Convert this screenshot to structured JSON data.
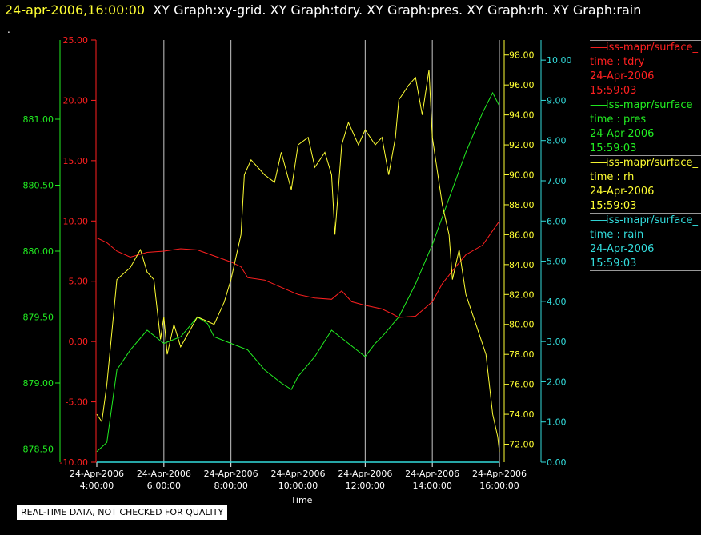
{
  "header": {
    "timestamp": "24-apr-2006,16:00:00",
    "graphs": "XY Graph:xy-grid.  XY Graph:tdry.  XY Graph:pres.  XY Graph:rh.  XY Graph:rain"
  },
  "dot": ".",
  "footer_note": "REAL-TIME DATA, NOT CHECKED FOR QUALITY",
  "colors": {
    "tdry": "#ff2020",
    "pres": "#22ee22",
    "rh": "#ffff33",
    "rain": "#33dddd",
    "grid": "#c8c8c8",
    "x_axis": "#ffffff"
  },
  "legend": [
    {
      "line": "iss-mapr/surface_",
      "var": "time : tdry",
      "date": "24-Apr-2006",
      "time": "15:59:03",
      "color": "#ff2020"
    },
    {
      "line": "iss-mapr/surface_",
      "var": "time : pres",
      "date": "24-Apr-2006",
      "time": "15:59:03",
      "color": "#22ee22"
    },
    {
      "line": "iss-mapr/surface_",
      "var": "time : rh",
      "date": "24-Apr-2006",
      "time": "15:59:03",
      "color": "#ffff33"
    },
    {
      "line": "iss-mapr/surface_",
      "var": "time : rain",
      "date": "24-Apr-2006",
      "time": "15:59:03",
      "color": "#33dddd"
    }
  ],
  "chart_data": {
    "type": "line",
    "xlabel": "Time",
    "x_ticks": [
      {
        "date": "24-Apr-2006",
        "time": "4:00:00",
        "hour": 4
      },
      {
        "date": "24-Apr-2006",
        "time": "6:00:00",
        "hour": 6
      },
      {
        "date": "24-Apr-2006",
        "time": "8:00:00",
        "hour": 8
      },
      {
        "date": "24-Apr-2006",
        "time": "10:00:00",
        "hour": 10
      },
      {
        "date": "24-Apr-2006",
        "time": "12:00:00",
        "hour": 12
      },
      {
        "date": "24-Apr-2006",
        "time": "14:00:00",
        "hour": 14
      },
      {
        "date": "24-Apr-2006",
        "time": "16:00:00",
        "hour": 16
      }
    ],
    "x_range_hours": [
      4,
      16
    ],
    "grid": "vertical",
    "axes": {
      "pres": {
        "range": [
          878.4,
          881.6
        ],
        "ticks": [
          "878.50",
          "879.00",
          "879.50",
          "880.00",
          "880.50",
          "881.00"
        ]
      },
      "tdry": {
        "range": [
          -10,
          25
        ],
        "ticks": [
          "-10.00",
          "-5.00",
          "0.00",
          "5.00",
          "10.00",
          "15.00",
          "20.00",
          "25.00"
        ]
      },
      "rh": {
        "range": [
          70.8,
          99.0
        ],
        "ticks": [
          "72.00",
          "74.00",
          "76.00",
          "78.00",
          "80.00",
          "82.00",
          "84.00",
          "86.00",
          "88.00",
          "90.00",
          "92.00",
          "94.00",
          "96.00",
          "98.00"
        ]
      },
      "rain": {
        "range": [
          0,
          10.5
        ],
        "ticks": [
          "0.00",
          "1.00",
          "2.00",
          "3.00",
          "4.00",
          "5.00",
          "6.00",
          "7.00",
          "8.00",
          "9.00",
          "10.00"
        ]
      }
    },
    "series": [
      {
        "key": "tdry",
        "axis": "tdry",
        "points": [
          [
            4.0,
            8.6
          ],
          [
            4.3,
            8.2
          ],
          [
            4.6,
            7.5
          ],
          [
            5.0,
            7.0
          ],
          [
            5.5,
            7.4
          ],
          [
            6.0,
            7.5
          ],
          [
            6.5,
            7.7
          ],
          [
            7.0,
            7.6
          ],
          [
            7.5,
            7.1
          ],
          [
            8.0,
            6.6
          ],
          [
            8.3,
            6.2
          ],
          [
            8.5,
            5.3
          ],
          [
            9.0,
            5.1
          ],
          [
            9.5,
            4.5
          ],
          [
            10.0,
            3.9
          ],
          [
            10.5,
            3.6
          ],
          [
            11.0,
            3.5
          ],
          [
            11.3,
            4.2
          ],
          [
            11.6,
            3.3
          ],
          [
            12.0,
            3.0
          ],
          [
            12.5,
            2.7
          ],
          [
            12.8,
            2.3
          ],
          [
            13.0,
            2.0
          ],
          [
            13.5,
            2.1
          ],
          [
            14.0,
            3.3
          ],
          [
            14.3,
            4.8
          ],
          [
            14.7,
            6.2
          ],
          [
            15.0,
            7.2
          ],
          [
            15.5,
            8.0
          ],
          [
            16.0,
            10.0
          ]
        ]
      },
      {
        "key": "pres",
        "axis": "pres",
        "points": [
          [
            4.0,
            878.48
          ],
          [
            4.3,
            878.55
          ],
          [
            4.6,
            879.1
          ],
          [
            5.0,
            879.25
          ],
          [
            5.5,
            879.4
          ],
          [
            6.0,
            879.3
          ],
          [
            6.5,
            879.35
          ],
          [
            7.0,
            879.5
          ],
          [
            7.3,
            879.45
          ],
          [
            7.5,
            879.35
          ],
          [
            8.0,
            879.3
          ],
          [
            8.5,
            879.25
          ],
          [
            9.0,
            879.1
          ],
          [
            9.5,
            879.0
          ],
          [
            9.8,
            878.95
          ],
          [
            10.0,
            879.05
          ],
          [
            10.5,
            879.2
          ],
          [
            11.0,
            879.4
          ],
          [
            11.5,
            879.3
          ],
          [
            12.0,
            879.2
          ],
          [
            12.3,
            879.3
          ],
          [
            12.5,
            879.35
          ],
          [
            13.0,
            879.5
          ],
          [
            13.5,
            879.75
          ],
          [
            14.0,
            880.05
          ],
          [
            14.5,
            880.4
          ],
          [
            15.0,
            880.75
          ],
          [
            15.5,
            881.05
          ],
          [
            15.8,
            881.2
          ],
          [
            16.0,
            881.1
          ]
        ]
      },
      {
        "key": "rh",
        "axis": "rh",
        "points": [
          [
            4.0,
            74.0
          ],
          [
            4.15,
            73.5
          ],
          [
            4.3,
            76.0
          ],
          [
            4.6,
            83.0
          ],
          [
            5.0,
            83.8
          ],
          [
            5.3,
            85.0
          ],
          [
            5.5,
            83.5
          ],
          [
            5.7,
            83.0
          ],
          [
            5.9,
            79.0
          ],
          [
            6.0,
            80.5
          ],
          [
            6.1,
            78.0
          ],
          [
            6.3,
            80.0
          ],
          [
            6.5,
            78.5
          ],
          [
            7.0,
            80.5
          ],
          [
            7.5,
            80.0
          ],
          [
            7.8,
            81.5
          ],
          [
            8.0,
            83.0
          ],
          [
            8.3,
            86.0
          ],
          [
            8.4,
            90.0
          ],
          [
            8.6,
            91.0
          ],
          [
            9.0,
            90.0
          ],
          [
            9.3,
            89.5
          ],
          [
            9.5,
            91.5
          ],
          [
            9.8,
            89.0
          ],
          [
            10.0,
            92.0
          ],
          [
            10.3,
            92.5
          ],
          [
            10.5,
            90.5
          ],
          [
            10.8,
            91.5
          ],
          [
            11.0,
            90.0
          ],
          [
            11.1,
            86.0
          ],
          [
            11.3,
            92.0
          ],
          [
            11.5,
            93.5
          ],
          [
            11.8,
            92.0
          ],
          [
            12.0,
            93.0
          ],
          [
            12.3,
            92.0
          ],
          [
            12.5,
            92.5
          ],
          [
            12.7,
            90.0
          ],
          [
            12.9,
            92.5
          ],
          [
            13.0,
            95.0
          ],
          [
            13.3,
            96.0
          ],
          [
            13.5,
            96.5
          ],
          [
            13.7,
            94.0
          ],
          [
            13.9,
            97.0
          ],
          [
            14.0,
            92.5
          ],
          [
            14.3,
            88.0
          ],
          [
            14.5,
            86.0
          ],
          [
            14.6,
            83.0
          ],
          [
            14.8,
            85.0
          ],
          [
            15.0,
            82.0
          ],
          [
            15.3,
            80.0
          ],
          [
            15.6,
            78.0
          ],
          [
            15.8,
            74.0
          ],
          [
            15.95,
            72.5
          ],
          [
            16.0,
            71.5
          ]
        ]
      },
      {
        "key": "rain",
        "axis": "rain",
        "points": [
          [
            4.0,
            0.0
          ],
          [
            16.0,
            0.0
          ]
        ]
      }
    ]
  }
}
